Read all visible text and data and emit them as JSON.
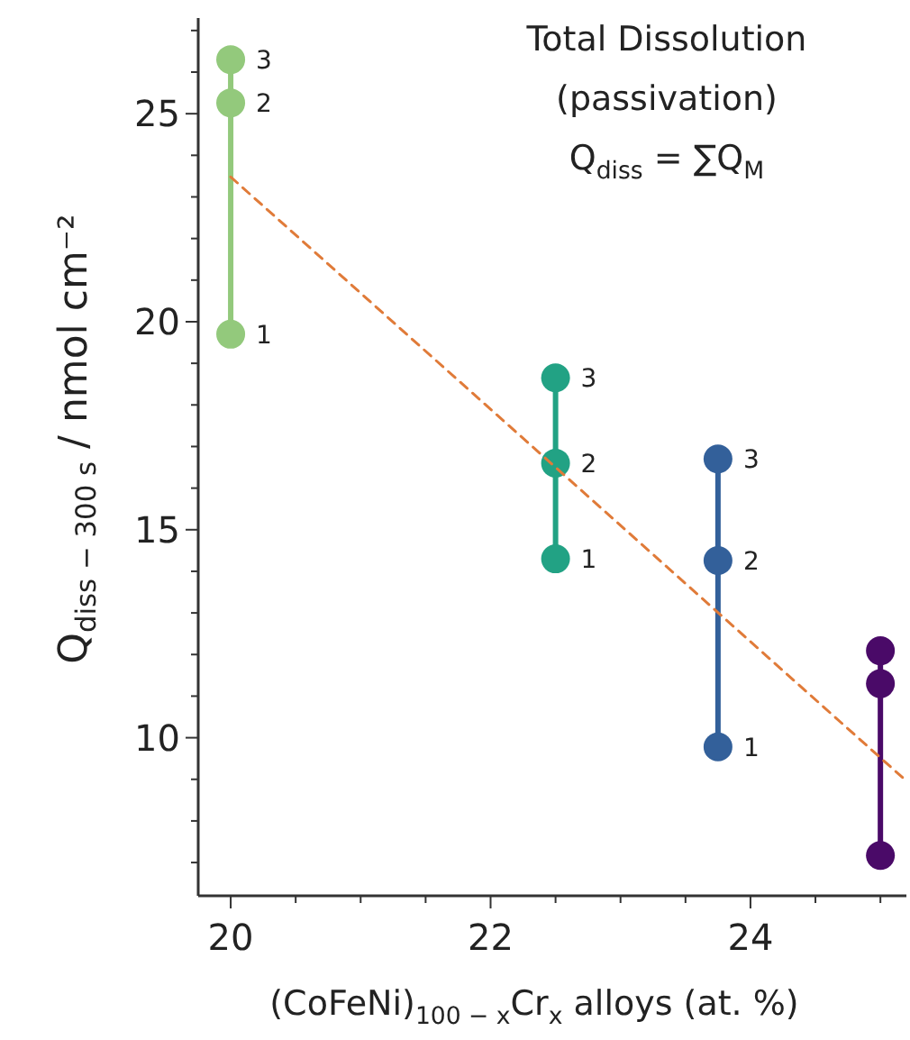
{
  "chart_data": {
    "type": "line",
    "xlabel": "(CoFeNi)$_{100 − x}$Cr$_{x}$ alloys (at. %)",
    "ylabel": "Q$_{diss − 300 s}$ / nmol cm⁻²",
    "annotations": [
      "Total Dissolution",
      "(passivation)",
      "Q$_{diss}$ = ∑Q$_{M}$",
      {
        "text": "1",
        "x": 20,
        "y": 19.7
      },
      {
        "text": "2",
        "x": 20,
        "y": 25.26
      },
      {
        "text": "3",
        "x": 20,
        "y": 26.3
      },
      {
        "text": "1",
        "x": 22.5,
        "y": 14.3
      },
      {
        "text": "2",
        "x": 22.5,
        "y": 16.6
      },
      {
        "text": "3",
        "x": 22.5,
        "y": 18.65
      },
      {
        "text": "1",
        "x": 23.75,
        "y": 9.78
      },
      {
        "text": "2",
        "x": 23.75,
        "y": 14.26
      },
      {
        "text": "3",
        "x": 23.75,
        "y": 16.7
      }
    ],
    "xlim": [
      19.75,
      25.2
    ],
    "xticks": [
      20,
      {
        "value": 20.5,
        "label": null
      },
      {
        "value": 21,
        "label": null
      },
      {
        "value": 21.5,
        "label": null
      },
      22,
      {
        "value": 22.5,
        "label": null
      },
      {
        "value": 23,
        "label": null
      },
      {
        "value": 23.5,
        "label": null
      },
      24,
      {
        "value": 24.5,
        "label": null
      },
      {
        "value": 25,
        "label": null
      }
    ],
    "ylim": [
      6.2,
      27.3
    ],
    "yticks": [
      {
        "value": 7,
        "label": null
      },
      {
        "value": 8,
        "label": null
      },
      {
        "value": 9,
        "label": null
      },
      10,
      {
        "value": 11,
        "label": null
      },
      {
        "value": 12,
        "label": null
      },
      {
        "value": 13,
        "label": null
      },
      {
        "value": 14,
        "label": null
      },
      15,
      {
        "value": 16,
        "label": null
      },
      {
        "value": 17,
        "label": null
      },
      {
        "value": 18,
        "label": null
      },
      {
        "value": 19,
        "label": null
      },
      20,
      {
        "value": 21,
        "label": null
      },
      {
        "value": 22,
        "label": null
      },
      {
        "value": 23,
        "label": null
      },
      {
        "value": 24,
        "label": null
      },
      25,
      {
        "value": 26,
        "label": null
      },
      {
        "value": 27,
        "label": null
      }
    ],
    "marker": "circle",
    "grid": false,
    "series": [
      {
        "color": "#93c97c",
        "x": [
          20,
          20,
          20
        ],
        "values": [
          19.7,
          25.26,
          26.3
        ]
      },
      {
        "color": "#22a284",
        "x": [
          22.5,
          22.5,
          22.5
        ],
        "values": [
          14.3,
          16.6,
          18.65
        ]
      },
      {
        "color": "#33609a",
        "x": [
          23.75,
          23.75,
          23.75
        ],
        "values": [
          9.78,
          14.26,
          16.7
        ]
      },
      {
        "color": "#4a0a68",
        "x": [
          25,
          25,
          25
        ],
        "values": [
          7.17,
          11.3,
          12.09
        ]
      },
      {
        "color": "#e07b39",
        "x": [
          20,
          25.2
        ],
        "values": [
          23.48,
          8.96
        ],
        "marker": "none",
        "line_style": "dashed"
      }
    ]
  }
}
